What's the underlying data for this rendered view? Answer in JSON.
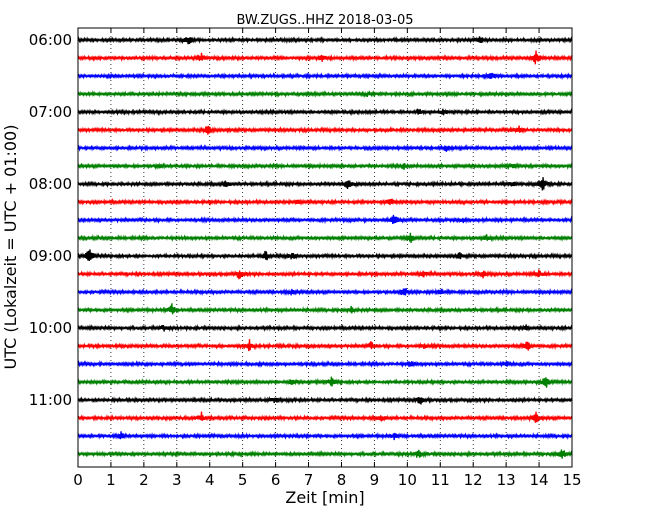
{
  "chart_data": {
    "type": "line",
    "title": "BW.ZUGS..HHZ 2018-03-05",
    "xlabel": "Zeit  [min]",
    "ylabel": "UTC (Lokalzeit = UTC + 01:00)",
    "xlim": [
      0,
      15
    ],
    "xticks": [
      "0",
      "1",
      "2",
      "3",
      "4",
      "5",
      "6",
      "7",
      "8",
      "9",
      "10",
      "11",
      "12",
      "13",
      "14",
      "15"
    ],
    "y_tick_labels": [
      "06:00",
      "07:00",
      "08:00",
      "09:00",
      "10:00",
      "11:00"
    ],
    "trace_interval_minutes": 15,
    "start_time": "06:00",
    "colors": [
      "#000000",
      "#ff0000",
      "#0000ff",
      "#008000"
    ],
    "grid": "vertical dotted",
    "traces": [
      {
        "start": "06:00",
        "color": "#000000",
        "events": [
          {
            "t": 3.35,
            "a": 5
          },
          {
            "t": 12.2,
            "a": 4
          }
        ]
      },
      {
        "start": "06:15",
        "color": "#ff0000",
        "events": [
          {
            "t": 3.75,
            "a": 5
          },
          {
            "t": 7.4,
            "a": 3
          },
          {
            "t": 13.9,
            "a": 7
          }
        ]
      },
      {
        "start": "06:30",
        "color": "#0000ff",
        "events": [
          {
            "t": 12.55,
            "a": 4
          }
        ]
      },
      {
        "start": "06:45",
        "color": "#008000",
        "events": [
          {
            "t": 8.8,
            "a": 2
          }
        ]
      },
      {
        "start": "07:00",
        "color": "#000000",
        "events": [
          {
            "t": 10.35,
            "a": 4
          },
          {
            "t": 11.1,
            "a": 3
          }
        ]
      },
      {
        "start": "07:15",
        "color": "#ff0000",
        "events": [
          {
            "t": 3.95,
            "a": 6
          },
          {
            "t": 13.4,
            "a": 3
          }
        ]
      },
      {
        "start": "07:30",
        "color": "#0000ff",
        "events": [
          {
            "t": 11.2,
            "a": 3
          }
        ]
      },
      {
        "start": "07:45",
        "color": "#008000",
        "events": [
          {
            "t": 2.5,
            "a": 2
          },
          {
            "t": 9.9,
            "a": 3
          },
          {
            "t": 13.2,
            "a": 3
          }
        ]
      },
      {
        "start": "08:00",
        "color": "#000000",
        "events": [
          {
            "t": 4.5,
            "a": 3
          },
          {
            "t": 8.2,
            "a": 6
          },
          {
            "t": 13.2,
            "a": 3
          },
          {
            "t": 14.1,
            "a": 8
          }
        ]
      },
      {
        "start": "08:15",
        "color": "#ff0000",
        "events": [
          {
            "t": 6.7,
            "a": 3
          },
          {
            "t": 9.5,
            "a": 4
          }
        ]
      },
      {
        "start": "08:30",
        "color": "#0000ff",
        "events": [
          {
            "t": 9.6,
            "a": 6
          },
          {
            "t": 11.7,
            "a": 3
          }
        ]
      },
      {
        "start": "08:45",
        "color": "#008000",
        "events": [
          {
            "t": 10.1,
            "a": 5
          },
          {
            "t": 12.4,
            "a": 3
          }
        ]
      },
      {
        "start": "09:00",
        "color": "#000000",
        "events": [
          {
            "t": 0.35,
            "a": 8
          },
          {
            "t": 5.7,
            "a": 6
          },
          {
            "t": 6.5,
            "a": 4
          },
          {
            "t": 11.6,
            "a": 3
          }
        ]
      },
      {
        "start": "09:15",
        "color": "#ff0000",
        "events": [
          {
            "t": 4.9,
            "a": 5
          },
          {
            "t": 10.5,
            "a": 3
          },
          {
            "t": 12.3,
            "a": 4
          },
          {
            "t": 14.0,
            "a": 4
          }
        ]
      },
      {
        "start": "09:30",
        "color": "#0000ff",
        "events": [
          {
            "t": 6.5,
            "a": 3
          },
          {
            "t": 9.9,
            "a": 6
          },
          {
            "t": 11.0,
            "a": 3
          }
        ]
      },
      {
        "start": "09:45",
        "color": "#008000",
        "events": [
          {
            "t": 2.85,
            "a": 6
          },
          {
            "t": 8.3,
            "a": 3
          }
        ]
      },
      {
        "start": "10:00",
        "color": "#000000",
        "events": [
          {
            "t": 2.6,
            "a": 3
          },
          {
            "t": 13.6,
            "a": 3
          }
        ]
      },
      {
        "start": "10:15",
        "color": "#ff0000",
        "events": [
          {
            "t": 5.2,
            "a": 6
          },
          {
            "t": 8.9,
            "a": 4
          },
          {
            "t": 10.5,
            "a": 3
          },
          {
            "t": 13.65,
            "a": 6
          }
        ]
      },
      {
        "start": "10:30",
        "color": "#0000ff",
        "events": [
          {
            "t": 10.1,
            "a": 3
          },
          {
            "t": 13.0,
            "a": 3
          }
        ]
      },
      {
        "start": "10:45",
        "color": "#008000",
        "events": [
          {
            "t": 6.5,
            "a": 3
          },
          {
            "t": 7.7,
            "a": 5
          },
          {
            "t": 14.2,
            "a": 7
          }
        ]
      },
      {
        "start": "11:00",
        "color": "#000000",
        "events": [
          {
            "t": 6.0,
            "a": 3
          },
          {
            "t": 10.4,
            "a": 5
          }
        ]
      },
      {
        "start": "11:15",
        "color": "#ff0000",
        "events": [
          {
            "t": 3.75,
            "a": 5
          },
          {
            "t": 9.2,
            "a": 4
          },
          {
            "t": 13.9,
            "a": 6
          }
        ]
      },
      {
        "start": "11:30",
        "color": "#0000ff",
        "events": [
          {
            "t": 1.3,
            "a": 4
          },
          {
            "t": 9.6,
            "a": 3
          }
        ]
      },
      {
        "start": "11:45",
        "color": "#008000",
        "events": [
          {
            "t": 10.35,
            "a": 5
          },
          {
            "t": 14.7,
            "a": 6
          }
        ]
      }
    ]
  }
}
